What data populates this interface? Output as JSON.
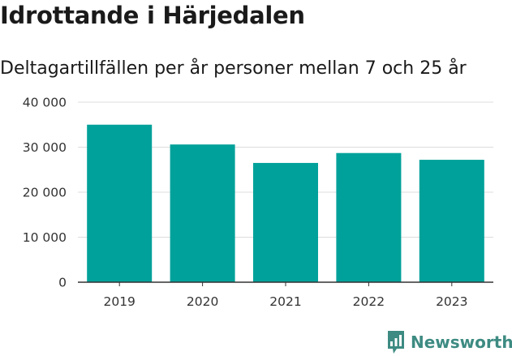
{
  "brand": {
    "name": "Newsworthy",
    "color": "#3d8b82",
    "icon": "newsworthy-logo-icon"
  },
  "chart_data": {
    "type": "bar",
    "title": "Idrottande i Härjedalen",
    "subtitle": "Deltagartillfällen per år personer mellan 7 och 25 år",
    "categories": [
      "2019",
      "2020",
      "2021",
      "2022",
      "2023"
    ],
    "values": [
      35000,
      30600,
      26500,
      28700,
      27200
    ],
    "ylim": [
      0,
      40000
    ],
    "yticks": [
      0,
      10000,
      20000,
      30000,
      40000
    ],
    "ytick_labels": [
      "0",
      "10 000",
      "20 000",
      "30 000",
      "40 000"
    ],
    "grid": true,
    "bar_color": "#00a19a",
    "xlabel": "",
    "ylabel": ""
  }
}
